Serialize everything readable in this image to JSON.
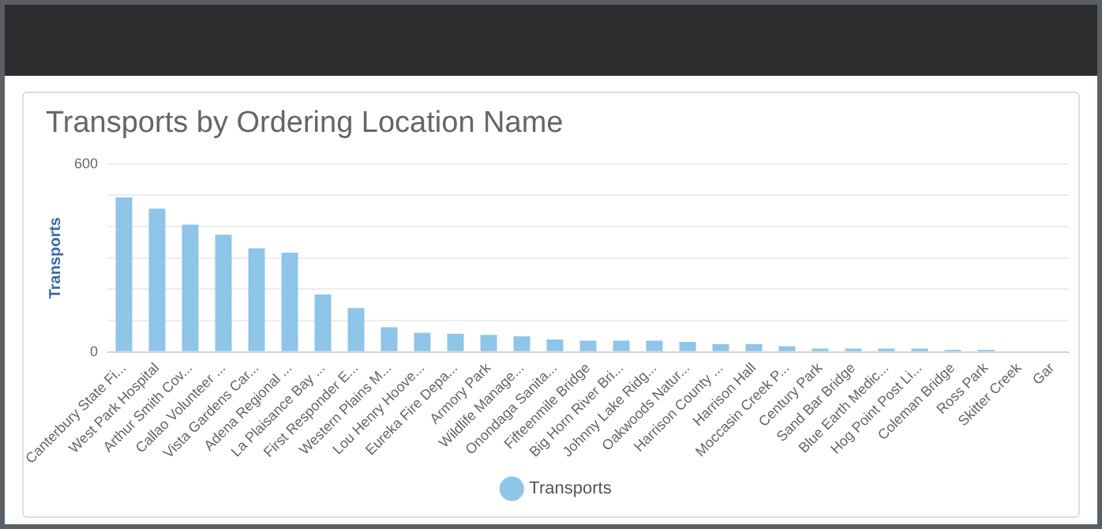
{
  "chart_data": {
    "type": "bar",
    "title": "Transports by Ordering Location Name",
    "ylabel": "Transports",
    "categories": [
      "Canterbury State Fi...",
      "West Park Hospital",
      "Arthur Smith Cov...",
      "Callao Volunteer ...",
      "Vista Gardens Car...",
      "Adena Regional ...",
      "La Plaisance Bay ...",
      "First Responder E...",
      "Western Plains M...",
      "Lou Henry Hoove...",
      "Eureka Fire Depa...",
      "Armory Park",
      "Wildlife Manage...",
      "Onondaga Sanita...",
      "Fifteenmile Bridge",
      "Big Horn River Bri...",
      "Johnny Lake Ridg...",
      "Oakwoods Natur...",
      "Harrison County ...",
      "Harrison Hall",
      "Moccasin Creek P...",
      "Century Park",
      "Sand Bar Bridge",
      "Blue Earth Medic...",
      "Hog Point Post Li...",
      "Coleman Bridge",
      "Ross Park",
      "Skitter Creek",
      "Gar"
    ],
    "series": [
      {
        "name": "Transports",
        "color": "#8ec5e8",
        "values": [
          493,
          457,
          406,
          374,
          331,
          317,
          183,
          140,
          79,
          61,
          58,
          54,
          50,
          40,
          36,
          36,
          36,
          32,
          25,
          25,
          18,
          11,
          11,
          11,
          11,
          7,
          7,
          null,
          null
        ]
      }
    ],
    "ylim": [
      0,
      600
    ],
    "yticks": [
      0,
      {
        "value": 100,
        "label": null
      },
      {
        "value": 200,
        "label": null
      },
      {
        "value": 300,
        "label": null
      },
      {
        "value": 400,
        "label": null
      },
      {
        "value": 500,
        "label": null
      },
      600
    ],
    "grid": "y",
    "legend": "bottom"
  }
}
